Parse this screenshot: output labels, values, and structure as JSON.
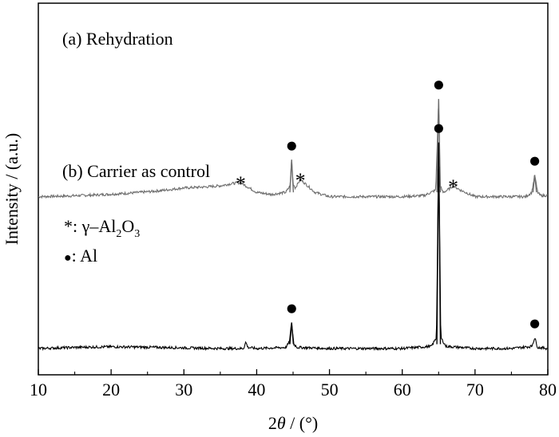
{
  "chart_data": {
    "type": "line",
    "xlabel_prefix": "2",
    "xlabel_var": "θ",
    "xlabel_unit": " / (°)",
    "ylabel": "Intensity / (a.u.)",
    "xlim": [
      10,
      80
    ],
    "x_ticks": [
      "10",
      "20",
      "30",
      "40",
      "50",
      "60",
      "70",
      "80"
    ],
    "y_ticks_shown": false,
    "grid": false,
    "series": [
      {
        "name": "(a) Rehydration",
        "color": "#6e6e6e",
        "offset": 0.7,
        "x": [
          10,
          14,
          18,
          22,
          26,
          30,
          33,
          35,
          36.5,
          37.8,
          38.5,
          40,
          42,
          44,
          44.6,
          44.8,
          45.0,
          45.3,
          46,
          47,
          48,
          50,
          55,
          60,
          63,
          64.6,
          65.0,
          65.2,
          65.6,
          66.2,
          67,
          68,
          70,
          74,
          77,
          77.8,
          78.2,
          78.6,
          79,
          80
        ],
        "y": [
          0.0,
          0.003,
          0.008,
          0.015,
          0.025,
          0.04,
          0.045,
          0.05,
          0.06,
          0.065,
          0.05,
          0.02,
          0.01,
          0.02,
          0.05,
          0.17,
          0.06,
          0.04,
          0.08,
          0.05,
          0.02,
          0.0,
          0.0,
          0.0,
          0.005,
          0.03,
          0.45,
          0.05,
          0.02,
          0.03,
          0.05,
          0.03,
          0.0,
          0.0,
          0.0,
          0.02,
          0.1,
          0.02,
          0.005,
          0.005
        ]
      },
      {
        "name": "(b) Carrier as control",
        "color": "#000000",
        "offset": 0.0,
        "x": [
          10,
          15,
          20,
          25,
          30,
          35,
          38.2,
          38.5,
          38.8,
          40,
          44,
          44.5,
          44.8,
          45.1,
          45.6,
          50,
          55,
          60,
          64,
          64.7,
          65.0,
          65.3,
          66,
          70,
          75,
          77.8,
          78.2,
          78.6,
          80
        ],
        "y": [
          0.0,
          0.005,
          0.008,
          0.006,
          0.003,
          0.0,
          0.0,
          0.03,
          0.005,
          0.0,
          0.005,
          0.03,
          0.12,
          0.02,
          0.005,
          0.0,
          0.0,
          0.0,
          0.01,
          0.05,
          0.95,
          0.05,
          0.01,
          0.0,
          0.0,
          0.01,
          0.05,
          0.005,
          0.0
        ]
      }
    ],
    "labels": {
      "a": "(a) Rehydration",
      "b": "(b) Carrier as control"
    },
    "legend": {
      "star_symbol": "*",
      "star_prefix": ": γ–Al",
      "star_sub1": "2",
      "star_mid": "O",
      "star_sub2": "3",
      "dot_symbol": "●",
      "dot_label": ": Al"
    },
    "markers": [
      {
        "series": 0,
        "symbol": "*",
        "x": 37.8,
        "y": 0.065
      },
      {
        "series": 0,
        "symbol": "●",
        "x": 44.8,
        "y": 0.17
      },
      {
        "series": 0,
        "symbol": "*",
        "x": 46.0,
        "y": 0.08
      },
      {
        "series": 0,
        "symbol": "●",
        "x": 65.0,
        "y": 0.45
      },
      {
        "series": 0,
        "symbol": "*",
        "x": 67.0,
        "y": 0.05
      },
      {
        "series": 0,
        "symbol": "●",
        "x": 78.2,
        "y": 0.1
      },
      {
        "series": 1,
        "symbol": "●",
        "x": 44.8,
        "y": 0.12
      },
      {
        "series": 1,
        "symbol": "●",
        "x": 65.0,
        "y": 0.95
      },
      {
        "series": 1,
        "symbol": "●",
        "x": 78.2,
        "y": 0.05
      }
    ]
  }
}
